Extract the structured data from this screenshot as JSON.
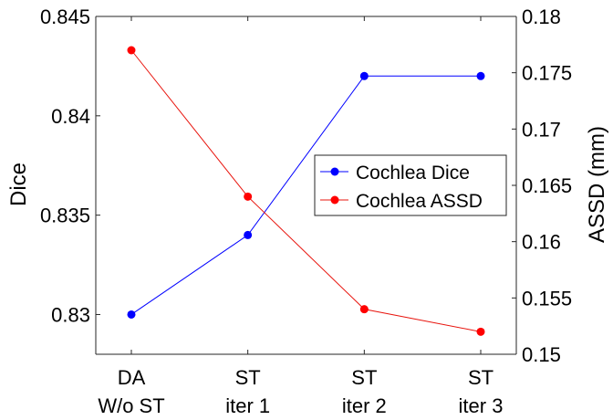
{
  "chart_data": {
    "type": "line",
    "categories": [
      {
        "line1": "DA",
        "line2": "W/o ST"
      },
      {
        "line1": "ST",
        "line2": "iter 1"
      },
      {
        "line1": "ST",
        "line2": "iter 2"
      },
      {
        "line1": "ST",
        "line2": "iter 3"
      }
    ],
    "left_axis": {
      "label": "Dice",
      "ylim": [
        0.828,
        0.845
      ],
      "ticks": [
        0.83,
        0.835,
        0.84,
        0.845
      ],
      "tick_labels": [
        "0.83",
        "0.835",
        "0.84",
        "0.845"
      ]
    },
    "right_axis": {
      "label": "ASSD (mm)",
      "ylim": [
        0.15,
        0.18
      ],
      "ticks": [
        0.15,
        0.155,
        0.16,
        0.165,
        0.17,
        0.175,
        0.18
      ],
      "tick_labels": [
        "0.15",
        "0.155",
        "0.16",
        "0.165",
        "0.17",
        "0.175",
        "0.18"
      ]
    },
    "series": [
      {
        "name": "Cochlea Dice",
        "axis": "left",
        "color": "#0000ff",
        "values": [
          0.83,
          0.834,
          0.842,
          0.842
        ]
      },
      {
        "name": "Cochlea ASSD",
        "axis": "right",
        "color": "#e8140d",
        "marker_color": "#ff0000",
        "values": [
          0.177,
          0.164,
          0.154,
          0.152
        ]
      }
    ],
    "legend": {
      "placement": "center-right"
    },
    "grid": false
  }
}
